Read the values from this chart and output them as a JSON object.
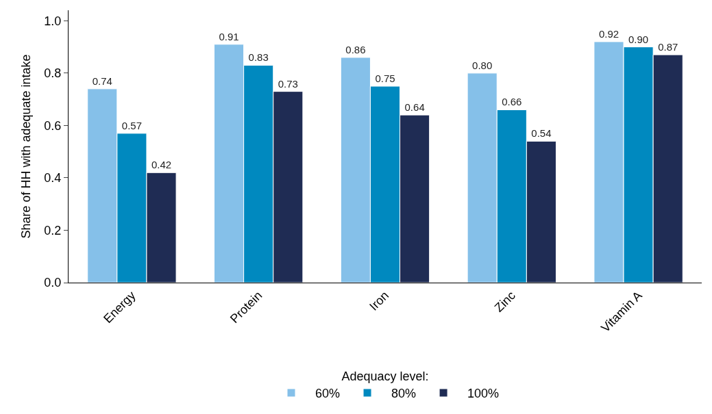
{
  "chart_data": {
    "type": "bar",
    "ylabel": "Share of HH with adequate intake",
    "legend_title": "Adequacy level:",
    "categories": [
      "Energy",
      "Protein",
      "Iron",
      "Zinc",
      "Vitamin A"
    ],
    "series": [
      {
        "name": "60%",
        "color": "#85c0e9",
        "values": [
          0.74,
          0.91,
          0.86,
          0.8,
          0.92
        ],
        "value_labels": [
          "0.74",
          "0.91",
          "0.86",
          "0.80",
          "0.92"
        ]
      },
      {
        "name": "80%",
        "color": "#0089bf",
        "values": [
          0.57,
          0.83,
          0.75,
          0.66,
          0.9
        ],
        "value_labels": [
          "0.57",
          "0.83",
          "0.75",
          "0.66",
          "0.90"
        ]
      },
      {
        "name": "100%",
        "color": "#1f2c54",
        "values": [
          0.42,
          0.73,
          0.64,
          0.54,
          0.87
        ],
        "value_labels": [
          "0.42",
          "0.73",
          "0.64",
          "0.54",
          "0.87"
        ]
      }
    ],
    "ylim": [
      0,
      1.04
    ],
    "yticks": [
      {
        "value": 0,
        "label": "0.0"
      },
      {
        "value": 0.2,
        "label": "0.2"
      },
      {
        "value": 0.4,
        "label": "0.4"
      },
      {
        "value": 0.6,
        "label": "0.6"
      },
      {
        "value": 0.8,
        "label": "0.8"
      },
      {
        "value": 1,
        "label": "1.0"
      }
    ],
    "legend": "bottom"
  }
}
